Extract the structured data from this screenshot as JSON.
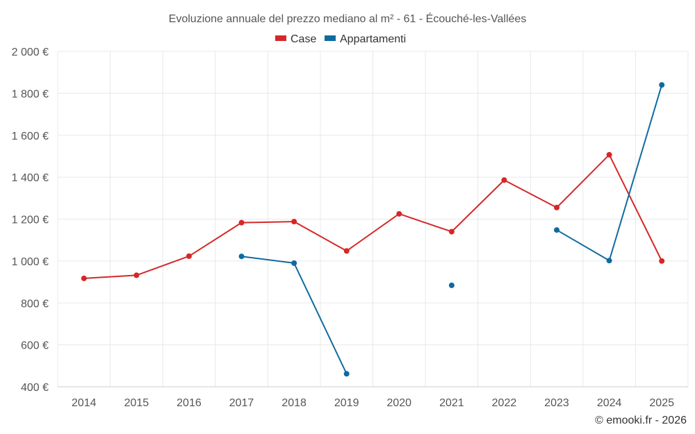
{
  "chart_data": {
    "type": "line",
    "title": "Evoluzione annuale del prezzo mediano al m² - 61 - Écouché-les-Vallées",
    "xlabel": "",
    "ylabel": "",
    "categories": [
      "2014",
      "2015",
      "2016",
      "2017",
      "2018",
      "2019",
      "2020",
      "2021",
      "2022",
      "2023",
      "2024",
      "2025"
    ],
    "ylim": [
      400,
      2000
    ],
    "yticks": [
      400,
      600,
      800,
      1000,
      1200,
      1400,
      1600,
      1800,
      2000
    ],
    "ytick_labels": [
      "400 €",
      "600 €",
      "800 €",
      "1 000 €",
      "1 200 €",
      "1 400 €",
      "1 600 €",
      "1 800 €",
      "2 000 €"
    ],
    "grid": true,
    "legend_position": "top-center",
    "series": [
      {
        "name": "Case",
        "color": "#d62728",
        "values": [
          917,
          932,
          1023,
          1183,
          1188,
          1048,
          1225,
          1140,
          1386,
          1255,
          1507,
          1000
        ]
      },
      {
        "name": "Appartamenti",
        "color": "#0f6aa0",
        "values": [
          null,
          null,
          null,
          1022,
          990,
          462,
          null,
          884,
          null,
          1148,
          1002,
          1840
        ]
      }
    ],
    "credit": "© emooki.fr - 2026"
  }
}
